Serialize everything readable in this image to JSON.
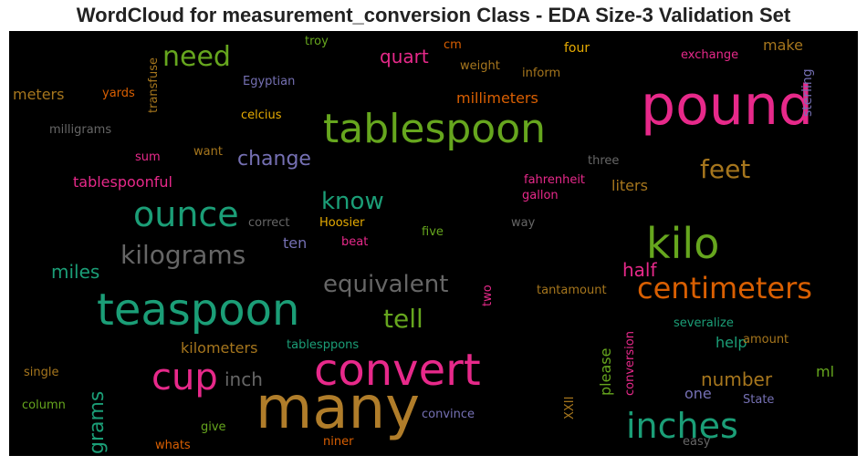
{
  "title": "WordCloud for measurement_conversion Class - EDA Size-3 Validation Set",
  "words": [
    {
      "text": "many",
      "color": "#b07d2a"
    },
    {
      "text": "pound",
      "color": "#e7298a"
    },
    {
      "text": "tablespoon",
      "color": "#66a61e"
    },
    {
      "text": "teaspoon",
      "color": "#1b9e77"
    },
    {
      "text": "convert",
      "color": "#e7298a"
    },
    {
      "text": "kilo",
      "color": "#66a61e"
    },
    {
      "text": "ounce",
      "color": "#1b9e77"
    },
    {
      "text": "cup",
      "color": "#e7298a"
    },
    {
      "text": "inches",
      "color": "#1b9e77"
    },
    {
      "text": "centimeters",
      "color": "#d95f02"
    },
    {
      "text": "kilograms",
      "color": "#666666"
    },
    {
      "text": "equivalent",
      "color": "#666666"
    },
    {
      "text": "need",
      "color": "#66a61e"
    },
    {
      "text": "feet",
      "color": "#a6761d"
    },
    {
      "text": "tell",
      "color": "#66a61e"
    },
    {
      "text": "know",
      "color": "#1b9e77"
    },
    {
      "text": "change",
      "color": "#7570b3"
    },
    {
      "text": "grams",
      "color": "#1b9e77"
    },
    {
      "text": "miles",
      "color": "#1b9e77"
    },
    {
      "text": "inch",
      "color": "#666666"
    },
    {
      "text": "number",
      "color": "#a6761d"
    },
    {
      "text": "half",
      "color": "#e7298a"
    },
    {
      "text": "quart",
      "color": "#e7298a"
    },
    {
      "text": "millimeters",
      "color": "#d95f02"
    },
    {
      "text": "make",
      "color": "#a6761d"
    },
    {
      "text": "kilometers",
      "color": "#a6761d"
    },
    {
      "text": "tablespoonful",
      "color": "#e7298a"
    },
    {
      "text": "meters",
      "color": "#a6761d"
    },
    {
      "text": "liters",
      "color": "#a6761d"
    },
    {
      "text": "please",
      "color": "#66a61e"
    },
    {
      "text": "ten",
      "color": "#7570b3"
    },
    {
      "text": "help",
      "color": "#1b9e77"
    },
    {
      "text": "one",
      "color": "#7570b3"
    },
    {
      "text": "ml",
      "color": "#66a61e"
    },
    {
      "text": "sterling",
      "color": "#7570b3"
    },
    {
      "text": "exchange",
      "color": "#e7298a"
    },
    {
      "text": "four",
      "color": "#e6ab02"
    },
    {
      "text": "troy",
      "color": "#66a61e"
    },
    {
      "text": "cm",
      "color": "#d95f02"
    },
    {
      "text": "weight",
      "color": "#a6761d"
    },
    {
      "text": "inform",
      "color": "#a6761d"
    },
    {
      "text": "transfuse",
      "color": "#a6761d"
    },
    {
      "text": "yards",
      "color": "#d95f02"
    },
    {
      "text": "Egyptian",
      "color": "#7570b3"
    },
    {
      "text": "celcius",
      "color": "#e6ab02"
    },
    {
      "text": "milligrams",
      "color": "#666666"
    },
    {
      "text": "sum",
      "color": "#e7298a"
    },
    {
      "text": "want",
      "color": "#a6761d"
    },
    {
      "text": "three",
      "color": "#666666"
    },
    {
      "text": "fahrenheit",
      "color": "#e7298a"
    },
    {
      "text": "gallon",
      "color": "#e7298a"
    },
    {
      "text": "correct",
      "color": "#666666"
    },
    {
      "text": "Hoosier",
      "color": "#e6ab02"
    },
    {
      "text": "beat",
      "color": "#e7298a"
    },
    {
      "text": "five",
      "color": "#66a61e"
    },
    {
      "text": "way",
      "color": "#666666"
    },
    {
      "text": "two",
      "color": "#e7298a"
    },
    {
      "text": "tantamount",
      "color": "#a6761d"
    },
    {
      "text": "conversion",
      "color": "#e7298a"
    },
    {
      "text": "severalize",
      "color": "#1b9e77"
    },
    {
      "text": "amount",
      "color": "#a6761d"
    },
    {
      "text": "tablesppons",
      "color": "#1b9e77"
    },
    {
      "text": "single",
      "color": "#a6761d"
    },
    {
      "text": "column",
      "color": "#66a61e"
    },
    {
      "text": "give",
      "color": "#66a61e"
    },
    {
      "text": "whats",
      "color": "#d95f02"
    },
    {
      "text": "niner",
      "color": "#d95f02"
    },
    {
      "text": "convince",
      "color": "#7570b3"
    },
    {
      "text": "XXII",
      "color": "#a6761d"
    },
    {
      "text": "State",
      "color": "#7570b3"
    },
    {
      "text": "easy",
      "color": "#666666"
    }
  ]
}
